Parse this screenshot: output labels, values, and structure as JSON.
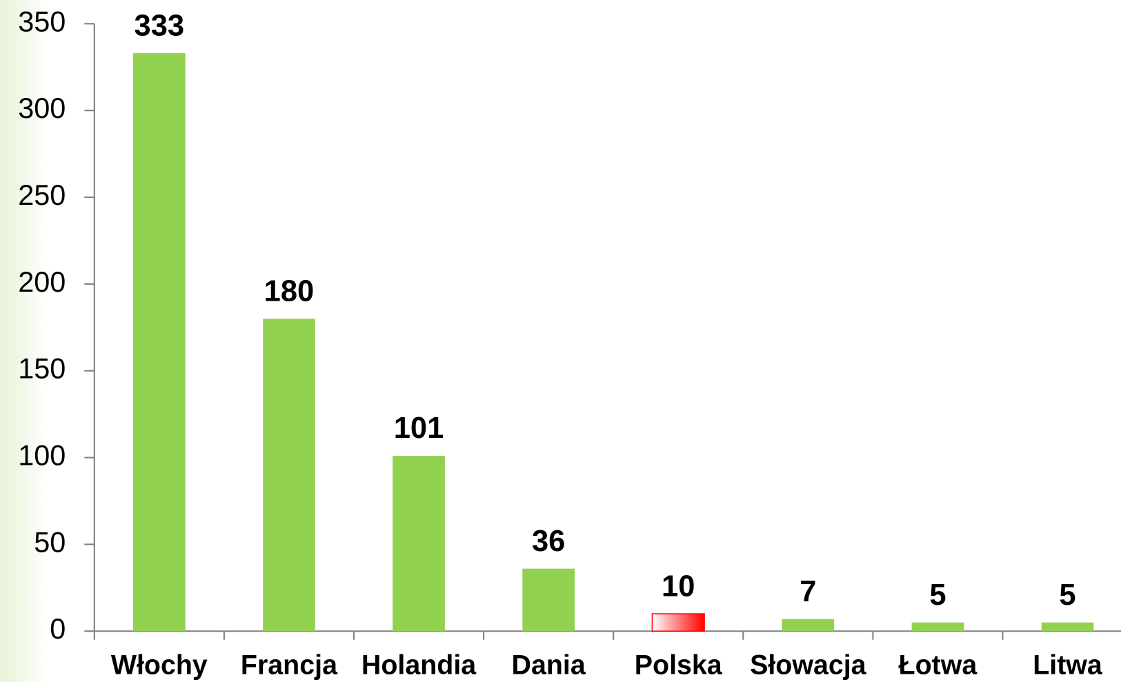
{
  "chart_data": {
    "type": "bar",
    "categories": [
      "Włochy",
      "Francja",
      "Holandia",
      "Dania",
      "Polska",
      "Słowacja",
      "Łotwa",
      "Litwa"
    ],
    "values": [
      333,
      180,
      101,
      36,
      10,
      7,
      5,
      5
    ],
    "colors": [
      "#92d050",
      "#92d050",
      "#92d050",
      "#92d050",
      "#ff0000",
      "#92d050",
      "#92d050",
      "#92d050"
    ],
    "ylim": [
      0,
      350
    ],
    "yticks": [
      0,
      50,
      100,
      150,
      200,
      250,
      300,
      350
    ],
    "grid": false
  }
}
